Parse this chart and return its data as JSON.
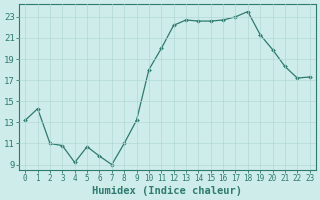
{
  "x": [
    0,
    1,
    2,
    3,
    4,
    5,
    6,
    7,
    8,
    9,
    10,
    11,
    12,
    13,
    14,
    15,
    16,
    17,
    18,
    19,
    20,
    21,
    22,
    23
  ],
  "y": [
    13.2,
    14.3,
    11.0,
    10.8,
    9.2,
    10.7,
    9.8,
    9.0,
    11.0,
    13.2,
    18.0,
    20.0,
    22.2,
    22.7,
    22.6,
    22.6,
    22.7,
    23.0,
    23.5,
    21.3,
    19.9,
    18.3,
    17.2,
    17.3
  ],
  "line_color": "#2e7b6e",
  "marker": "D",
  "marker_size": 2.0,
  "bg_color": "#ceecea",
  "grid_color": "#b2d8d4",
  "xlabel": "Humidex (Indice chaleur)",
  "xlim": [
    -0.5,
    23.5
  ],
  "ylim": [
    8.5,
    24.2
  ],
  "yticks": [
    9,
    11,
    13,
    15,
    17,
    19,
    21,
    23
  ],
  "xticks": [
    0,
    1,
    2,
    3,
    4,
    5,
    6,
    7,
    8,
    9,
    10,
    11,
    12,
    13,
    14,
    15,
    16,
    17,
    18,
    19,
    20,
    21,
    22,
    23
  ],
  "tick_color": "#2e7b6e",
  "label_color": "#2e7b6e",
  "xtick_fontsize": 5.5,
  "ytick_fontsize": 6.5,
  "xlabel_fontsize": 7.5
}
